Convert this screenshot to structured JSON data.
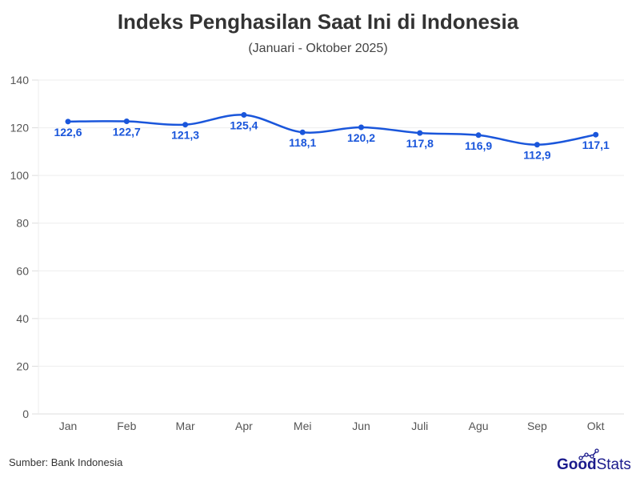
{
  "chart_data": {
    "type": "line",
    "title": "Indeks Penghasilan Saat Ini di Indonesia",
    "subtitle": "(Januari - Oktober 2025)",
    "categories": [
      "Jan",
      "Feb",
      "Mar",
      "Apr",
      "Mei",
      "Jun",
      "Juli",
      "Agu",
      "Sep",
      "Okt"
    ],
    "values": [
      122.6,
      122.7,
      121.3,
      125.4,
      118.1,
      120.2,
      117.8,
      116.9,
      112.9,
      117.1
    ],
    "data_labels": [
      "122,6",
      "122,7",
      "121,3",
      "125,4",
      "118,1",
      "120,2",
      "117,8",
      "116,9",
      "112,9",
      "117,1"
    ],
    "xlabel": "",
    "ylabel": "",
    "ylim": [
      0,
      140
    ],
    "yticks": [
      0,
      20,
      40,
      60,
      80,
      100,
      120,
      140
    ],
    "grid": true,
    "smooth": true,
    "line_color": "#1a56db"
  },
  "footer": {
    "source": "Sumber: Bank Indonesia",
    "logo_text_bold": "Good",
    "logo_text_light": "Stats",
    "logo_color": "#1a1a8c"
  }
}
